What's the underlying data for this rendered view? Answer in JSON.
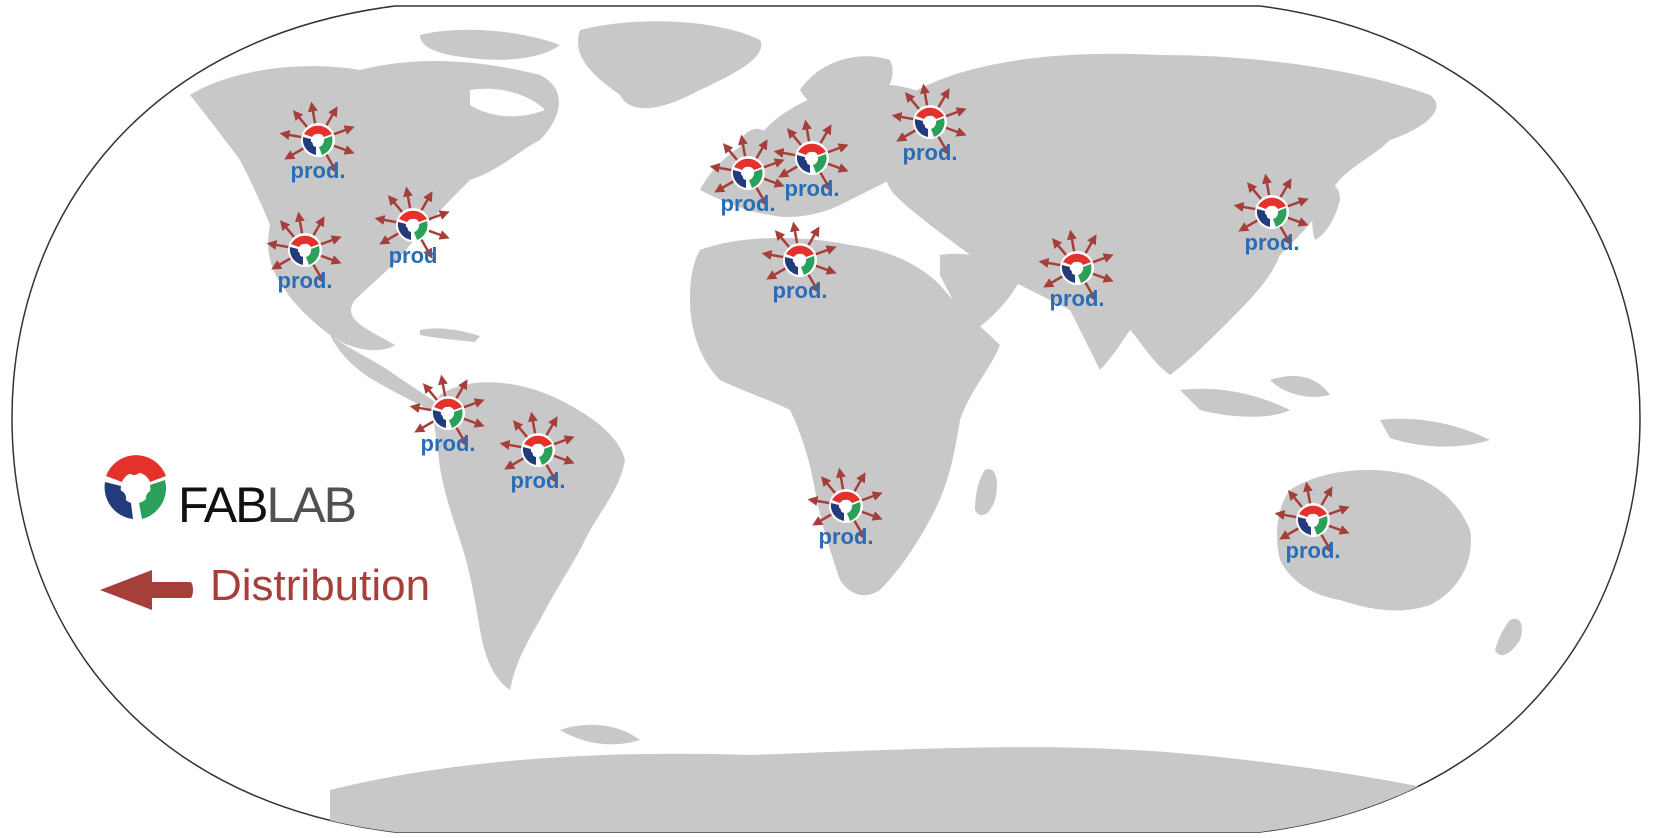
{
  "legend": {
    "logo_bold": "FAB",
    "logo_thin": "LAB",
    "distribution_label": "Distribution"
  },
  "colors": {
    "land": "#c8c8c8",
    "ocean": "#ffffff",
    "label": "#2a6db5",
    "arrow": "#a63f3a",
    "logo_red": "#e5312b",
    "logo_green": "#2aa05a",
    "logo_blue": "#223b7a"
  },
  "markers": [
    {
      "id": "north-america-west",
      "label": "prod."
    },
    {
      "id": "north-america-east",
      "label": "prod"
    },
    {
      "id": "mexico",
      "label": "prod."
    },
    {
      "id": "south-america-north",
      "label": "prod."
    },
    {
      "id": "brazil",
      "label": "prod."
    },
    {
      "id": "western-europe",
      "label": "prod."
    },
    {
      "id": "central-europe",
      "label": "prod."
    },
    {
      "id": "russia",
      "label": "prod."
    },
    {
      "id": "north-africa",
      "label": "prod."
    },
    {
      "id": "india",
      "label": "prod."
    },
    {
      "id": "east-asia",
      "label": "prod."
    },
    {
      "id": "southern-africa",
      "label": "prod."
    },
    {
      "id": "australia",
      "label": "prod."
    }
  ]
}
